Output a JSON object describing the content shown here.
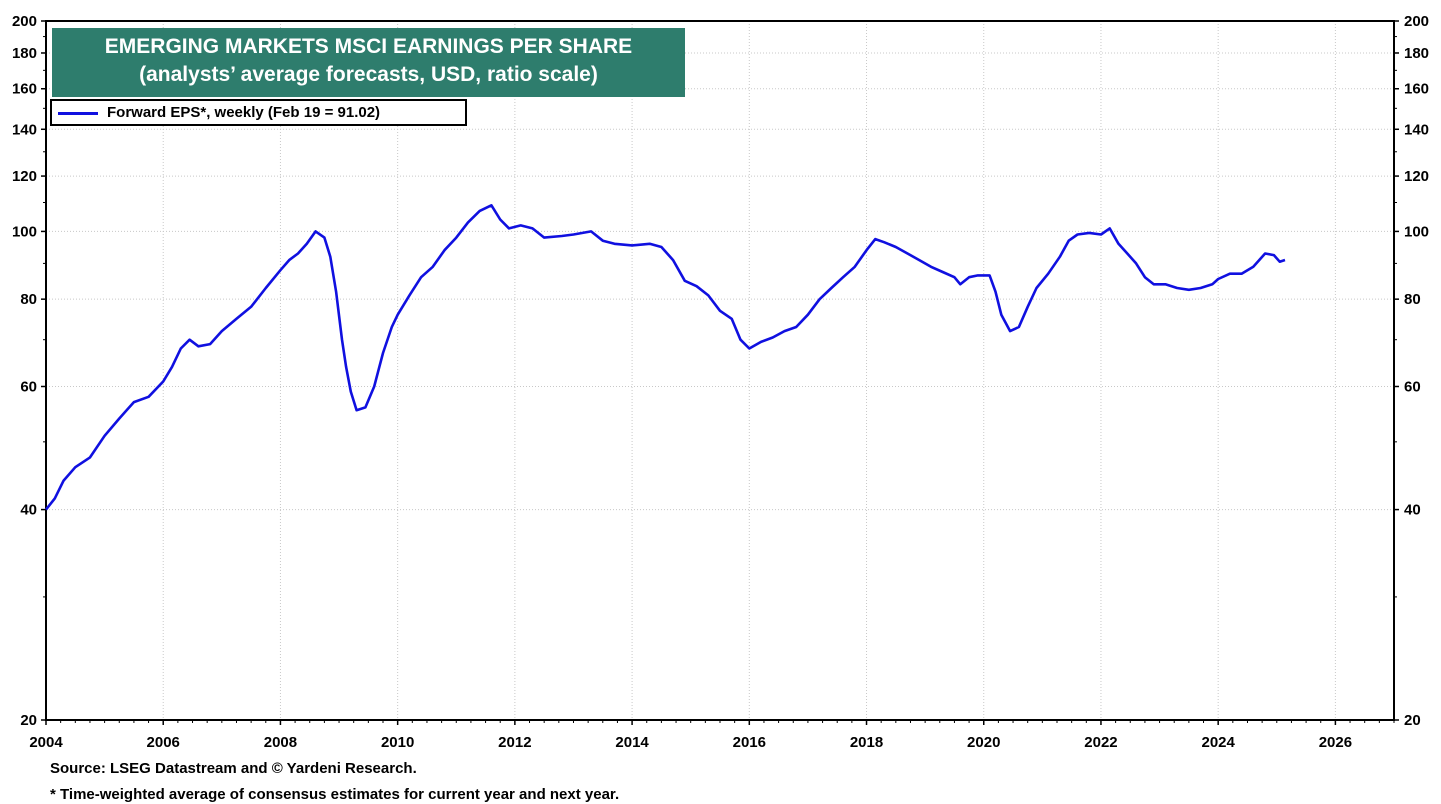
{
  "chart_data": {
    "type": "line",
    "title": "EMERGING MARKETS MSCI EARNINGS PER SHARE",
    "subtitle": "(analysts’ average forecasts, USD, ratio scale)",
    "y_scale": "log",
    "ylim": [
      20,
      200
    ],
    "xlim": [
      2004.0,
      2027.0
    ],
    "y_ticks": [
      20,
      40,
      60,
      80,
      100,
      120,
      140,
      160,
      180,
      200
    ],
    "y_tick_labels": [
      "20",
      "40",
      "60",
      "80",
      "100",
      "120",
      "140",
      "160",
      "180",
      "200"
    ],
    "x_ticks": [
      2004,
      2006,
      2008,
      2010,
      2012,
      2014,
      2016,
      2018,
      2020,
      2022,
      2024,
      2026
    ],
    "x_tick_labels": [
      "2004",
      "2006",
      "2008",
      "2010",
      "2012",
      "2014",
      "2016",
      "2018",
      "2020",
      "2022",
      "2024",
      "2026"
    ],
    "grid": true,
    "legend_position": "top-left",
    "series": [
      {
        "name": "Forward EPS*, weekly (Feb 19 = 91.02)",
        "color": "#1010e0",
        "points": [
          [
            2004.0,
            40
          ],
          [
            2004.15,
            41.5
          ],
          [
            2004.3,
            44
          ],
          [
            2004.5,
            46
          ],
          [
            2004.75,
            47.5
          ],
          [
            2005.0,
            51
          ],
          [
            2005.25,
            54
          ],
          [
            2005.5,
            57
          ],
          [
            2005.75,
            58
          ],
          [
            2006.0,
            61
          ],
          [
            2006.15,
            64
          ],
          [
            2006.3,
            68
          ],
          [
            2006.45,
            70
          ],
          [
            2006.6,
            68.5
          ],
          [
            2006.8,
            69
          ],
          [
            2007.0,
            72
          ],
          [
            2007.25,
            75
          ],
          [
            2007.5,
            78
          ],
          [
            2007.75,
            83
          ],
          [
            2008.0,
            88
          ],
          [
            2008.15,
            91
          ],
          [
            2008.3,
            93
          ],
          [
            2008.45,
            96
          ],
          [
            2008.6,
            100
          ],
          [
            2008.75,
            98
          ],
          [
            2008.85,
            92
          ],
          [
            2008.95,
            82
          ],
          [
            2009.05,
            70
          ],
          [
            2009.12,
            64
          ],
          [
            2009.2,
            59
          ],
          [
            2009.3,
            55.5
          ],
          [
            2009.45,
            56
          ],
          [
            2009.6,
            60
          ],
          [
            2009.75,
            67
          ],
          [
            2009.9,
            73
          ],
          [
            2010.0,
            76
          ],
          [
            2010.2,
            81
          ],
          [
            2010.4,
            86
          ],
          [
            2010.6,
            89
          ],
          [
            2010.8,
            94
          ],
          [
            2011.0,
            98
          ],
          [
            2011.2,
            103
          ],
          [
            2011.4,
            107
          ],
          [
            2011.6,
            109
          ],
          [
            2011.75,
            104
          ],
          [
            2011.9,
            101
          ],
          [
            2012.1,
            102
          ],
          [
            2012.3,
            101
          ],
          [
            2012.5,
            98
          ],
          [
            2012.8,
            98.5
          ],
          [
            2013.0,
            99
          ],
          [
            2013.3,
            100
          ],
          [
            2013.5,
            97
          ],
          [
            2013.7,
            96
          ],
          [
            2014.0,
            95.5
          ],
          [
            2014.3,
            96
          ],
          [
            2014.5,
            95
          ],
          [
            2014.7,
            91
          ],
          [
            2014.9,
            85
          ],
          [
            2015.1,
            83.5
          ],
          [
            2015.3,
            81
          ],
          [
            2015.5,
            77
          ],
          [
            2015.7,
            75
          ],
          [
            2015.85,
            70
          ],
          [
            2016.0,
            68
          ],
          [
            2016.2,
            69.5
          ],
          [
            2016.4,
            70.5
          ],
          [
            2016.6,
            72
          ],
          [
            2016.8,
            73
          ],
          [
            2017.0,
            76
          ],
          [
            2017.2,
            80
          ],
          [
            2017.4,
            83
          ],
          [
            2017.6,
            86
          ],
          [
            2017.8,
            89
          ],
          [
            2018.0,
            94
          ],
          [
            2018.15,
            97.5
          ],
          [
            2018.3,
            96.5
          ],
          [
            2018.5,
            95
          ],
          [
            2018.7,
            93
          ],
          [
            2018.9,
            91
          ],
          [
            2019.1,
            89
          ],
          [
            2019.3,
            87.5
          ],
          [
            2019.5,
            86
          ],
          [
            2019.6,
            84
          ],
          [
            2019.75,
            86
          ],
          [
            2019.9,
            86.5
          ],
          [
            2020.1,
            86.5
          ],
          [
            2020.2,
            82
          ],
          [
            2020.3,
            76
          ],
          [
            2020.45,
            72
          ],
          [
            2020.6,
            73
          ],
          [
            2020.75,
            78
          ],
          [
            2020.9,
            83
          ],
          [
            2021.1,
            87
          ],
          [
            2021.3,
            92
          ],
          [
            2021.45,
            97
          ],
          [
            2021.6,
            99
          ],
          [
            2021.8,
            99.5
          ],
          [
            2022.0,
            99
          ],
          [
            2022.15,
            101
          ],
          [
            2022.3,
            96
          ],
          [
            2022.45,
            93
          ],
          [
            2022.6,
            90
          ],
          [
            2022.75,
            86
          ],
          [
            2022.9,
            84
          ],
          [
            2023.1,
            84
          ],
          [
            2023.3,
            83
          ],
          [
            2023.5,
            82.5
          ],
          [
            2023.7,
            83
          ],
          [
            2023.9,
            84
          ],
          [
            2024.0,
            85.5
          ],
          [
            2024.2,
            87
          ],
          [
            2024.4,
            87
          ],
          [
            2024.6,
            89
          ],
          [
            2024.8,
            93
          ],
          [
            2024.95,
            92.5
          ],
          [
            2025.05,
            90.5
          ],
          [
            2025.14,
            91.02
          ]
        ]
      }
    ]
  },
  "footnotes": {
    "source": "Source: LSEG Datastream and © Yardeni Research.",
    "note": "* Time-weighted average of consensus estimates for current year and next year."
  }
}
